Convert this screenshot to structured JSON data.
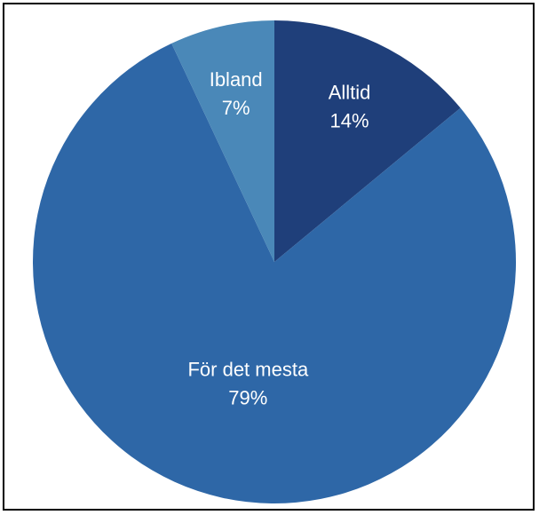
{
  "chart_data": {
    "type": "pie",
    "title": "",
    "start_angle_deg": 0,
    "direction": "clockwise",
    "slices": [
      {
        "label": "Alltid",
        "value": 14,
        "value_label": "14%",
        "color": "#1f3f7a"
      },
      {
        "label": "För det mesta",
        "value": 79,
        "value_label": "79%",
        "color": "#2e67a7"
      },
      {
        "label": "Ibland",
        "value": 7,
        "value_label": "7%",
        "color": "#4a88b8"
      }
    ]
  }
}
